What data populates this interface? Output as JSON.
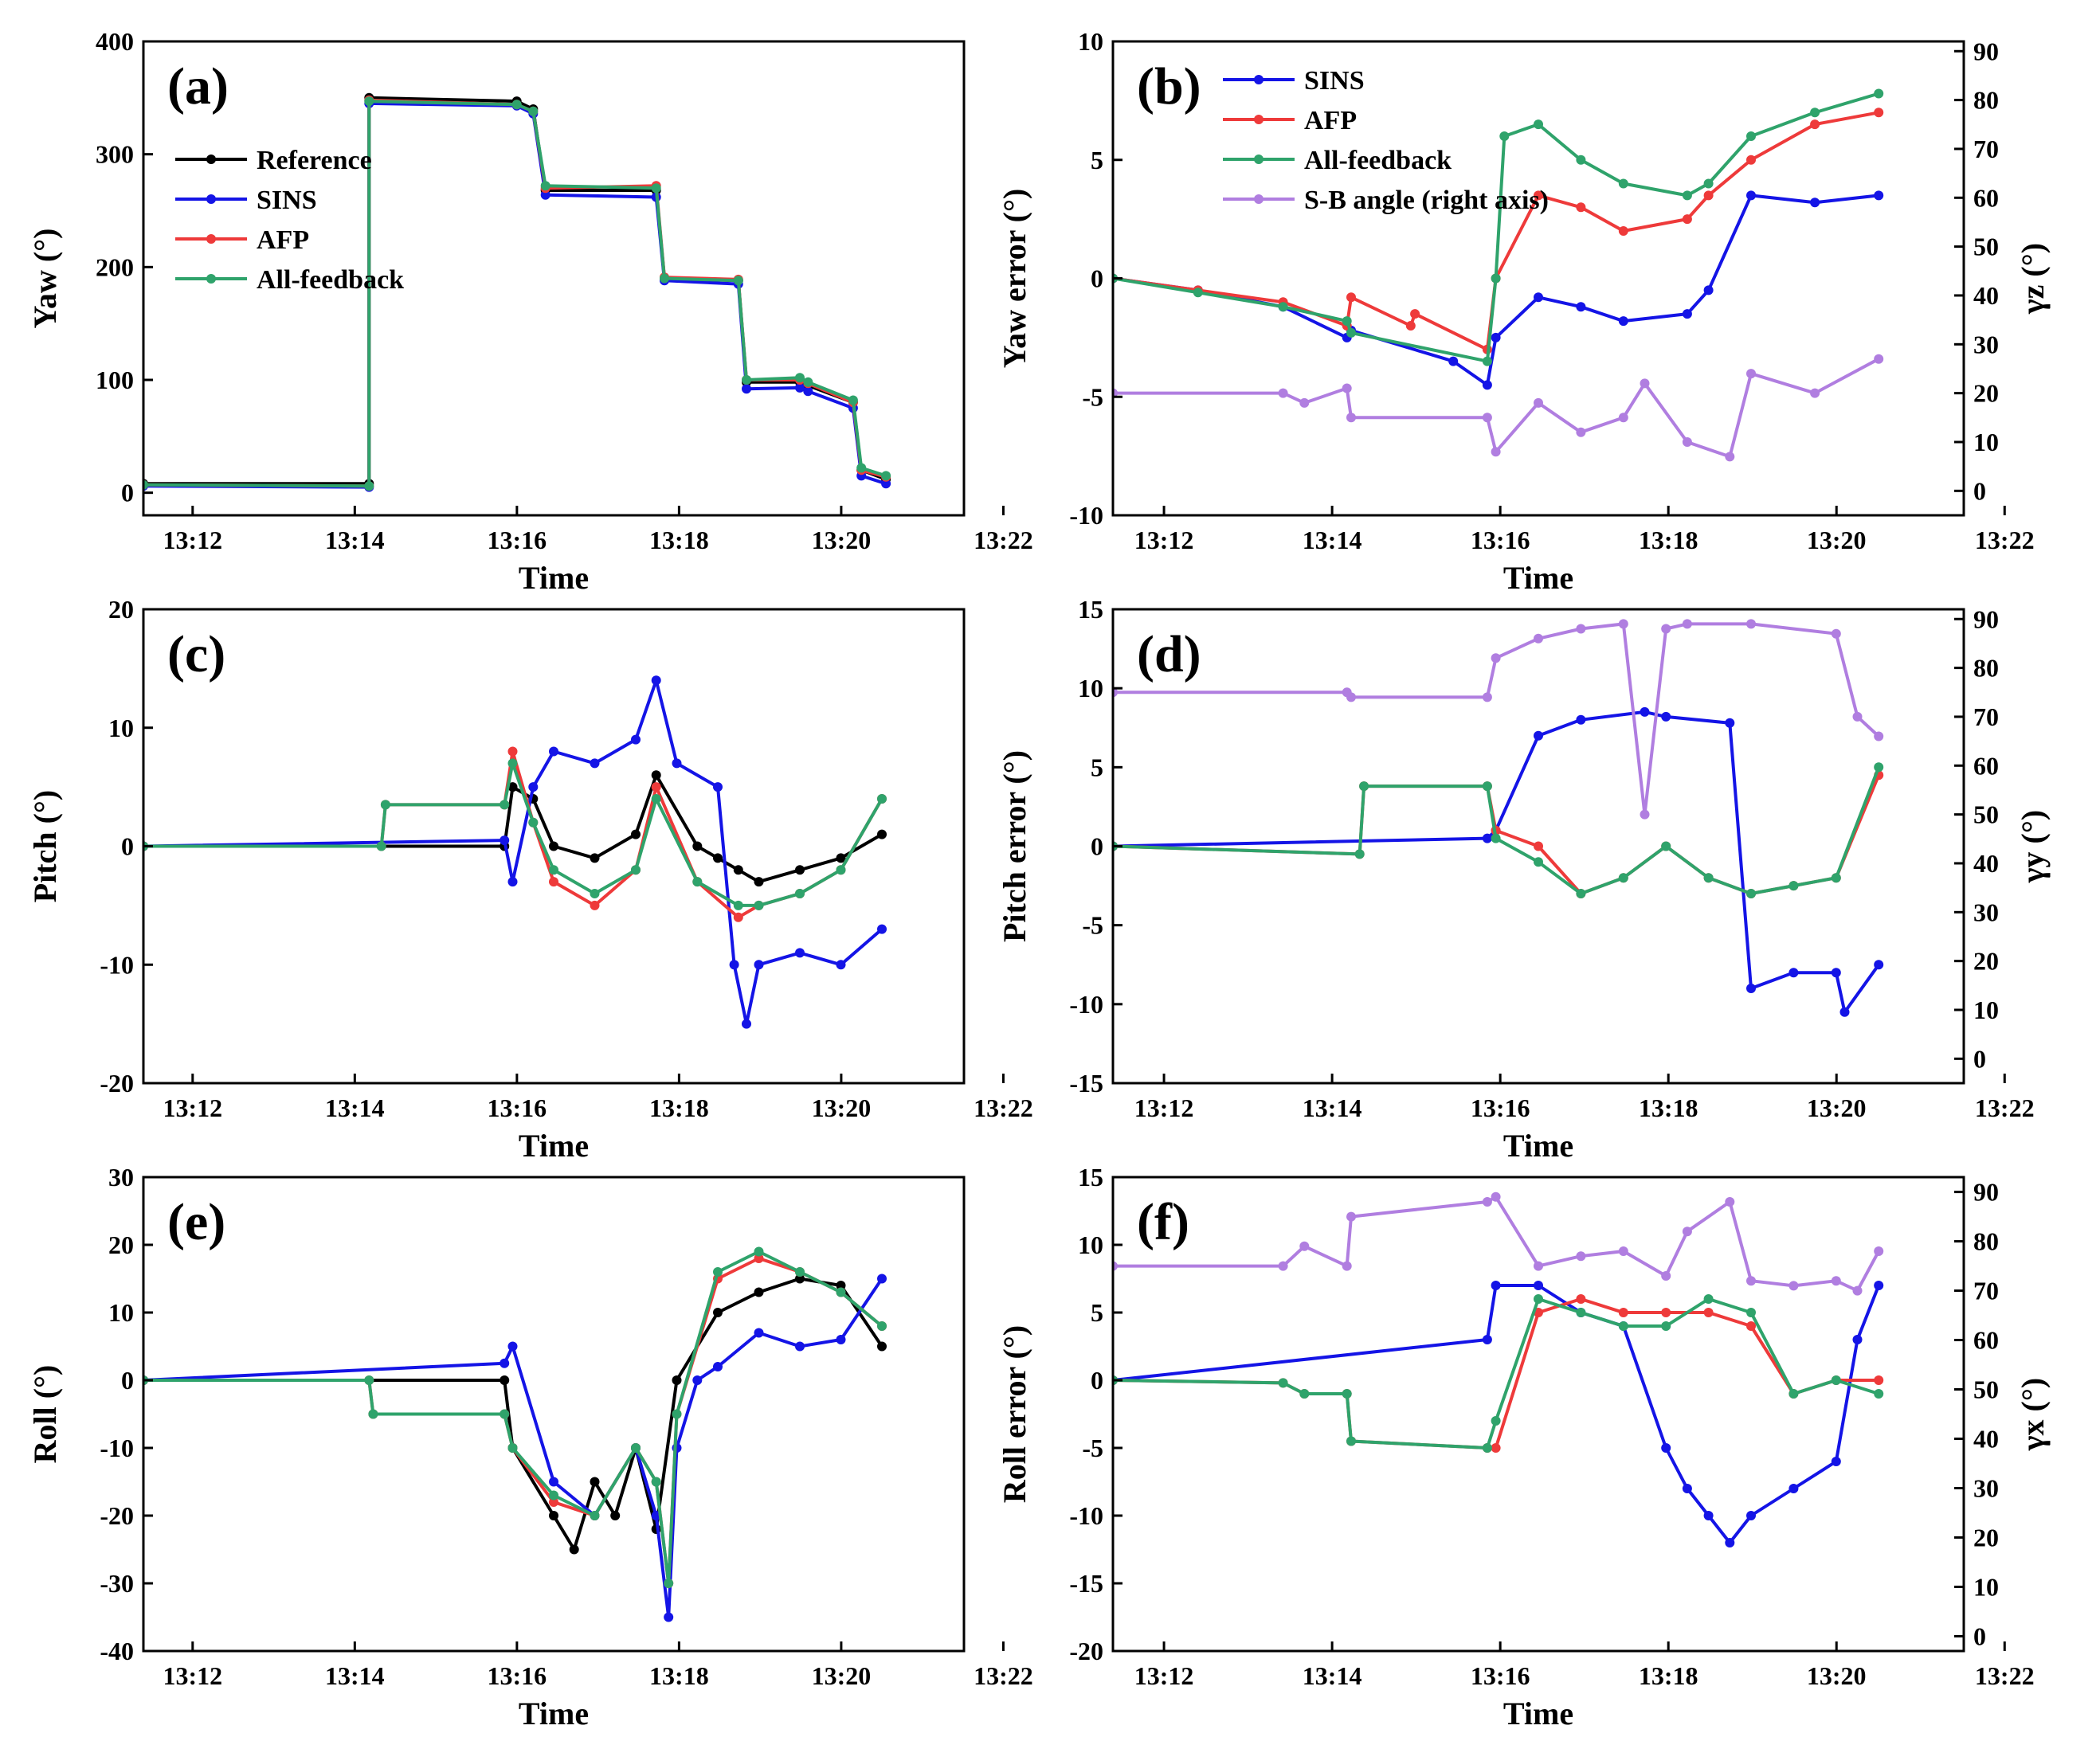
{
  "series_colors": {
    "Reference": "#000000",
    "SINS": "#1414e6",
    "AFP": "#ee3a3a",
    "All-feedback": "#2fa36b",
    "S-B angle (right axis)": "#b07ee0"
  },
  "chart_data": [
    {
      "panel": "(a)",
      "type": "line",
      "xlabel": "Time",
      "ylabel": "Yaw (°)",
      "xlim": [
        13.2,
        13.4
      ],
      "ylim": [
        -20,
        400
      ],
      "xticks": [
        "13:12",
        "13:14",
        "13:16",
        "13:18",
        "13:20",
        "13:22"
      ],
      "yticks": [
        0,
        100,
        200,
        300,
        400
      ],
      "legend": [
        "Reference",
        "SINS",
        "AFP",
        "All-feedback"
      ],
      "series": [
        {
          "name": "Reference",
          "x": [
            13.2,
            13.255,
            13.255,
            13.291,
            13.295,
            13.298,
            13.325,
            13.327,
            13.345,
            13.347,
            13.36,
            13.362,
            13.373,
            13.375,
            13.381
          ],
          "y": [
            8,
            8,
            350,
            347,
            340,
            268,
            268,
            190,
            188,
            98,
            98,
            95,
            80,
            20,
            12
          ]
        },
        {
          "name": "SINS",
          "x": [
            13.2,
            13.255,
            13.255,
            13.291,
            13.295,
            13.298,
            13.325,
            13.327,
            13.345,
            13.347,
            13.36,
            13.362,
            13.373,
            13.375,
            13.381
          ],
          "y": [
            6,
            5,
            345,
            343,
            336,
            264,
            262,
            188,
            185,
            92,
            93,
            90,
            75,
            15,
            8
          ]
        },
        {
          "name": "AFP",
          "x": [
            13.2,
            13.255,
            13.255,
            13.291,
            13.295,
            13.298,
            13.325,
            13.327,
            13.345,
            13.347,
            13.36,
            13.362,
            13.373,
            13.375,
            13.381
          ],
          "y": [
            7,
            6,
            348,
            344,
            338,
            270,
            272,
            191,
            189,
            100,
            100,
            97,
            80,
            20,
            14
          ]
        },
        {
          "name": "All-feedback",
          "x": [
            13.2,
            13.255,
            13.255,
            13.291,
            13.295,
            13.298,
            13.325,
            13.327,
            13.345,
            13.347,
            13.36,
            13.362,
            13.373,
            13.375,
            13.381
          ],
          "y": [
            7,
            6,
            347,
            344,
            338,
            272,
            270,
            190,
            188,
            100,
            102,
            98,
            82,
            22,
            15
          ]
        }
      ]
    },
    {
      "panel": "(b)",
      "type": "line",
      "xlabel": "Time",
      "ylabel": "Yaw error (°)",
      "y2label": "γz (°)",
      "xlim": [
        13.2,
        13.4
      ],
      "ylim": [
        -10,
        10
      ],
      "y2lim": [
        -5,
        92
      ],
      "xticks": [
        "13:12",
        "13:14",
        "13:16",
        "13:18",
        "13:20",
        "13:22"
      ],
      "yticks": [
        -10,
        -5,
        0,
        5,
        10
      ],
      "y2ticks": [
        0,
        10,
        20,
        30,
        40,
        50,
        60,
        70,
        80,
        90
      ],
      "legend": [
        "SINS",
        "AFP",
        "All-feedback",
        "S-B angle (right axis)"
      ],
      "series": [
        {
          "name": "SINS",
          "x": [
            13.2,
            13.22,
            13.24,
            13.255,
            13.256,
            13.28,
            13.288,
            13.29,
            13.3,
            13.31,
            13.32,
            13.335,
            13.34,
            13.35,
            13.365,
            13.38
          ],
          "y": [
            0,
            -0.5,
            -1.2,
            -2.5,
            -2.2,
            -3.5,
            -4.5,
            -2.5,
            -0.8,
            -1.2,
            -1.8,
            -1.5,
            -0.5,
            3.5,
            3.2,
            3.5
          ]
        },
        {
          "name": "AFP",
          "x": [
            13.2,
            13.22,
            13.24,
            13.255,
            13.256,
            13.27,
            13.271,
            13.288,
            13.29,
            13.3,
            13.31,
            13.32,
            13.335,
            13.34,
            13.35,
            13.365,
            13.38
          ],
          "y": [
            0,
            -0.5,
            -1.0,
            -2.0,
            -0.8,
            -2.0,
            -1.5,
            -3.0,
            0,
            3.5,
            3.0,
            2.0,
            2.5,
            3.5,
            5.0,
            6.5,
            7.0
          ]
        },
        {
          "name": "All-feedback",
          "x": [
            13.2,
            13.22,
            13.24,
            13.255,
            13.256,
            13.288,
            13.29,
            13.292,
            13.3,
            13.31,
            13.32,
            13.335,
            13.34,
            13.35,
            13.365,
            13.38
          ],
          "y": [
            0,
            -0.6,
            -1.2,
            -1.8,
            -2.3,
            -3.5,
            0,
            6.0,
            6.5,
            5.0,
            4.0,
            3.5,
            4.0,
            6.0,
            7.0,
            7.8
          ]
        },
        {
          "name": "S-B angle (right axis)",
          "x": [
            13.2,
            13.24,
            13.245,
            13.255,
            13.256,
            13.288,
            13.29,
            13.3,
            13.31,
            13.32,
            13.325,
            13.335,
            13.345,
            13.35,
            13.365,
            13.38
          ],
          "y": [
            20,
            20,
            18,
            21,
            15,
            15,
            8,
            18,
            12,
            15,
            22,
            10,
            7,
            24,
            20,
            27
          ]
        }
      ]
    },
    {
      "panel": "(c)",
      "type": "line",
      "xlabel": "Time",
      "ylabel": "Pitch (°)",
      "xlim": [
        13.2,
        13.4
      ],
      "ylim": [
        -20,
        20
      ],
      "xticks": [
        "13:12",
        "13:14",
        "13:16",
        "13:18",
        "13:20",
        "13:22"
      ],
      "yticks": [
        -20,
        -10,
        0,
        10,
        20
      ],
      "legend": [],
      "series": [
        {
          "name": "Reference",
          "x": [
            13.2,
            13.288,
            13.29,
            13.295,
            13.3,
            13.31,
            13.32,
            13.325,
            13.335,
            13.34,
            13.345,
            13.35,
            13.36,
            13.37,
            13.38
          ],
          "y": [
            0,
            0,
            5,
            4,
            0,
            -1,
            1,
            6,
            0,
            -1,
            -2,
            -3,
            -2,
            -1,
            1
          ]
        },
        {
          "name": "SINS",
          "x": [
            13.2,
            13.288,
            13.29,
            13.295,
            13.3,
            13.31,
            13.32,
            13.325,
            13.33,
            13.34,
            13.344,
            13.347,
            13.35,
            13.36,
            13.37,
            13.38
          ],
          "y": [
            0,
            0.5,
            -3,
            5,
            8,
            7,
            9,
            14,
            7,
            5,
            -10,
            -15,
            -10,
            -9,
            -10,
            -7
          ]
        },
        {
          "name": "AFP",
          "x": [
            13.2,
            13.258,
            13.259,
            13.288,
            13.29,
            13.295,
            13.3,
            13.31,
            13.32,
            13.325,
            13.335,
            13.345,
            13.35,
            13.36,
            13.37,
            13.38
          ],
          "y": [
            0,
            0,
            3.5,
            3.5,
            8,
            2,
            -3,
            -5,
            -2,
            5,
            -3,
            -6,
            -5,
            -4,
            -2,
            4
          ]
        },
        {
          "name": "All-feedback",
          "x": [
            13.2,
            13.258,
            13.259,
            13.288,
            13.29,
            13.295,
            13.3,
            13.31,
            13.32,
            13.325,
            13.335,
            13.345,
            13.35,
            13.36,
            13.37,
            13.38
          ],
          "y": [
            0,
            0,
            3.5,
            3.5,
            7,
            2,
            -2,
            -4,
            -2,
            4,
            -3,
            -5,
            -5,
            -4,
            -2,
            4
          ]
        }
      ]
    },
    {
      "panel": "(d)",
      "type": "line",
      "xlabel": "Time",
      "ylabel": "Pitch error (°)",
      "y2label": "γy (°)",
      "xlim": [
        13.2,
        13.4
      ],
      "ylim": [
        -15,
        15
      ],
      "y2lim": [
        -5,
        92
      ],
      "xticks": [
        "13:12",
        "13:14",
        "13:16",
        "13:18",
        "13:20",
        "13:22"
      ],
      "yticks": [
        -15,
        -10,
        -5,
        0,
        5,
        10,
        15
      ],
      "y2ticks": [
        0,
        10,
        20,
        30,
        40,
        50,
        60,
        70,
        80,
        90
      ],
      "legend": [],
      "series": [
        {
          "name": "SINS",
          "x": [
            13.2,
            13.288,
            13.29,
            13.3,
            13.31,
            13.325,
            13.33,
            13.345,
            13.35,
            13.36,
            13.37,
            13.372,
            13.38
          ],
          "y": [
            0,
            0.5,
            1.0,
            7.0,
            8.0,
            8.5,
            8.2,
            7.8,
            -9.0,
            -8.0,
            -8.0,
            -10.5,
            -7.5
          ]
        },
        {
          "name": "AFP",
          "x": [
            13.2,
            13.258,
            13.259,
            13.288,
            13.29,
            13.3,
            13.31,
            13.32,
            13.33,
            13.34,
            13.35,
            13.36,
            13.37,
            13.38
          ],
          "y": [
            0,
            -0.5,
            3.8,
            3.8,
            1.0,
            0,
            -3.0,
            -2.0,
            0,
            -2.0,
            -3.0,
            -2.5,
            -2.0,
            4.5
          ]
        },
        {
          "name": "All-feedback",
          "x": [
            13.2,
            13.258,
            13.259,
            13.288,
            13.29,
            13.3,
            13.31,
            13.32,
            13.33,
            13.34,
            13.35,
            13.36,
            13.37,
            13.38
          ],
          "y": [
            0,
            -0.5,
            3.8,
            3.8,
            0.5,
            -1.0,
            -3.0,
            -2.0,
            0,
            -2.0,
            -3.0,
            -2.5,
            -2.0,
            5.0
          ]
        },
        {
          "name": "S-B angle (right axis)",
          "x": [
            13.2,
            13.255,
            13.256,
            13.288,
            13.29,
            13.3,
            13.31,
            13.32,
            13.325,
            13.33,
            13.335,
            13.35,
            13.37,
            13.375,
            13.38
          ],
          "y": [
            75,
            75,
            74,
            74,
            82,
            86,
            88,
            89,
            50,
            88,
            89,
            89,
            87,
            70,
            66
          ]
        }
      ]
    },
    {
      "panel": "(e)",
      "type": "line",
      "xlabel": "Time",
      "ylabel": "Roll (°)",
      "xlim": [
        13.2,
        13.4
      ],
      "ylim": [
        -40,
        30
      ],
      "xticks": [
        "13:12",
        "13:14",
        "13:16",
        "13:18",
        "13:20",
        "13:22"
      ],
      "yticks": [
        -40,
        -30,
        -20,
        -10,
        0,
        10,
        20,
        30
      ],
      "legend": [],
      "series": [
        {
          "name": "Reference",
          "x": [
            13.2,
            13.288,
            13.29,
            13.3,
            13.305,
            13.31,
            13.315,
            13.32,
            13.325,
            13.33,
            13.34,
            13.35,
            13.36,
            13.37,
            13.38
          ],
          "y": [
            0,
            0,
            -10,
            -20,
            -25,
            -15,
            -20,
            -10,
            -22,
            0,
            10,
            13,
            15,
            14,
            5
          ]
        },
        {
          "name": "SINS",
          "x": [
            13.2,
            13.288,
            13.29,
            13.3,
            13.31,
            13.32,
            13.325,
            13.328,
            13.33,
            13.335,
            13.34,
            13.35,
            13.36,
            13.37,
            13.38
          ],
          "y": [
            0,
            2.5,
            5,
            -15,
            -20,
            -10,
            -20,
            -35,
            -10,
            0,
            2,
            7,
            5,
            6,
            15
          ]
        },
        {
          "name": "AFP",
          "x": [
            13.2,
            13.255,
            13.256,
            13.288,
            13.29,
            13.3,
            13.31,
            13.32,
            13.325,
            13.328,
            13.33,
            13.34,
            13.35,
            13.36,
            13.37,
            13.38
          ],
          "y": [
            0,
            0,
            -5,
            -5,
            -10,
            -18,
            -20,
            -10,
            -15,
            -30,
            -5,
            15,
            18,
            16,
            13,
            8
          ]
        },
        {
          "name": "All-feedback",
          "x": [
            13.2,
            13.255,
            13.256,
            13.288,
            13.29,
            13.3,
            13.31,
            13.32,
            13.325,
            13.328,
            13.33,
            13.34,
            13.35,
            13.36,
            13.37,
            13.38
          ],
          "y": [
            0,
            0,
            -5,
            -5,
            -10,
            -17,
            -20,
            -10,
            -15,
            -30,
            -5,
            16,
            19,
            16,
            13,
            8
          ]
        }
      ]
    },
    {
      "panel": "(f)",
      "type": "line",
      "xlabel": "Time",
      "ylabel": "Roll error (°)",
      "y2label": "γx (°)",
      "xlim": [
        13.2,
        13.4
      ],
      "ylim": [
        -20,
        15
      ],
      "y2lim": [
        -3,
        93
      ],
      "xticks": [
        "13:12",
        "13:14",
        "13:16",
        "13:18",
        "13:20",
        "13:22"
      ],
      "yticks": [
        -20,
        -15,
        -10,
        -5,
        0,
        5,
        10,
        15
      ],
      "y2ticks": [
        0,
        10,
        20,
        30,
        40,
        50,
        60,
        70,
        80,
        90
      ],
      "legend": [],
      "series": [
        {
          "name": "SINS",
          "x": [
            13.2,
            13.288,
            13.29,
            13.3,
            13.31,
            13.32,
            13.33,
            13.335,
            13.34,
            13.345,
            13.35,
            13.36,
            13.37,
            13.375,
            13.38
          ],
          "y": [
            0,
            3,
            7,
            7,
            5,
            4,
            -5,
            -8,
            -10,
            -12,
            -10,
            -8,
            -6,
            3,
            7
          ]
        },
        {
          "name": "AFP",
          "x": [
            13.2,
            13.24,
            13.245,
            13.255,
            13.256,
            13.288,
            13.29,
            13.3,
            13.31,
            13.32,
            13.33,
            13.34,
            13.35,
            13.36,
            13.37,
            13.38
          ],
          "y": [
            0,
            -0.2,
            -1,
            -1,
            -4.5,
            -5,
            -5,
            5,
            6,
            5,
            5,
            5,
            4,
            -1,
            0,
            0
          ]
        },
        {
          "name": "All-feedback",
          "x": [
            13.2,
            13.24,
            13.245,
            13.255,
            13.256,
            13.288,
            13.29,
            13.3,
            13.31,
            13.32,
            13.33,
            13.34,
            13.35,
            13.36,
            13.37,
            13.38
          ],
          "y": [
            0,
            -0.2,
            -1,
            -1,
            -4.5,
            -5,
            -3,
            6,
            5,
            4,
            4,
            6,
            5,
            -1,
            0,
            -1
          ]
        },
        {
          "name": "S-B angle (right axis)",
          "x": [
            13.2,
            13.24,
            13.245,
            13.255,
            13.256,
            13.288,
            13.29,
            13.3,
            13.31,
            13.32,
            13.33,
            13.335,
            13.345,
            13.35,
            13.36,
            13.37,
            13.375,
            13.38
          ],
          "y": [
            75,
            75,
            79,
            75,
            85,
            88,
            89,
            75,
            77,
            78,
            73,
            82,
            88,
            72,
            71,
            72,
            70,
            78
          ]
        }
      ]
    }
  ]
}
